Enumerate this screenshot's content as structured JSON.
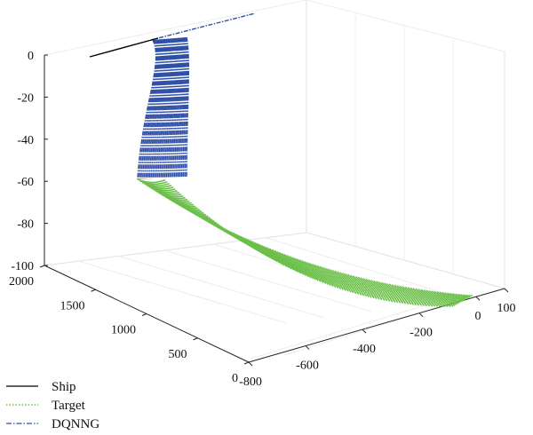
{
  "chart_data": {
    "type": "line",
    "projection": "3d",
    "grid": true,
    "legend_position": "bottom-left",
    "axes": {
      "x": {
        "ticks": [
          "-800",
          "-600",
          "-400",
          "-200",
          "0",
          "100"
        ],
        "range": [
          -800,
          100
        ]
      },
      "y": {
        "ticks": [
          "0",
          "500",
          "1000",
          "1500",
          "2000"
        ],
        "range": [
          0,
          2000
        ]
      },
      "z": {
        "ticks": [
          "0",
          "-20",
          "-40",
          "-60",
          "-80",
          "-100"
        ],
        "range": [
          -100,
          0
        ]
      }
    },
    "series": [
      {
        "name": "Ship",
        "color": "#000000",
        "style": "solid"
      },
      {
        "name": "Target",
        "color": "#6cc04a",
        "style": "dotted"
      },
      {
        "name": "DQNNG",
        "color": "#2f4fa8",
        "style": "dashdot"
      }
    ]
  }
}
